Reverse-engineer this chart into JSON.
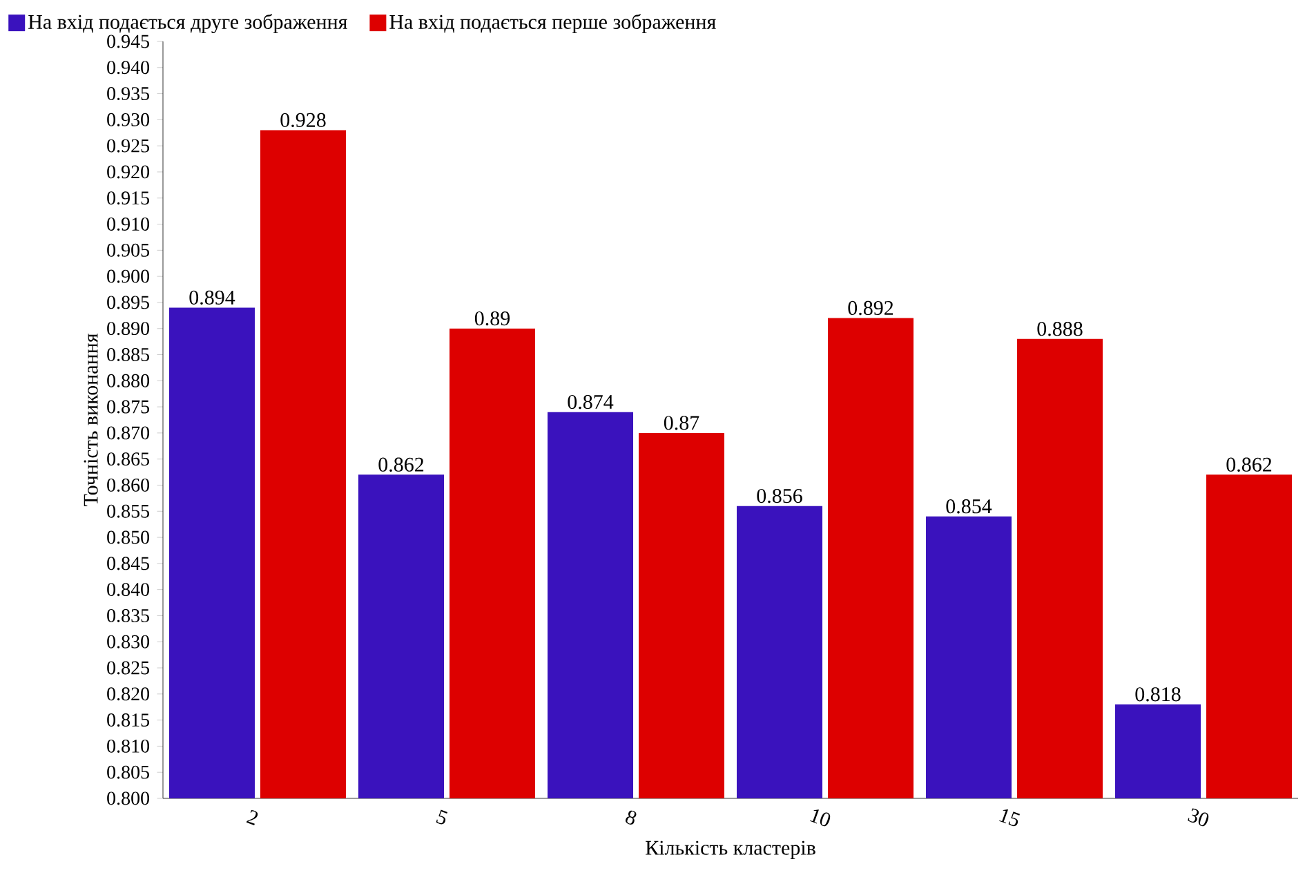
{
  "chart_data": {
    "type": "bar",
    "xlabel": "Кількість кластерів",
    "ylabel": "Точність виконання",
    "categories": [
      "2",
      "5",
      "8",
      "10",
      "15",
      "30"
    ],
    "series": [
      {
        "name": "На вхід подається друге зображення",
        "color": "#3a12bd",
        "values": [
          0.894,
          0.862,
          0.874,
          0.856,
          0.854,
          0.818
        ],
        "value_labels": [
          "0.894",
          "0.862",
          "0.874",
          "0.856",
          "0.854",
          "0.818"
        ]
      },
      {
        "name": "На вхід подається перше зображення",
        "color": "#dd0000",
        "values": [
          0.928,
          0.89,
          0.87,
          0.892,
          0.888,
          0.862
        ],
        "value_labels": [
          "0.928",
          "0.89",
          "0.87",
          "0.892",
          "0.888",
          "0.862"
        ]
      }
    ],
    "ylim": [
      0.8,
      0.945
    ],
    "yticks": [
      {
        "value": 0.8,
        "label": "0.800"
      },
      {
        "value": 0.805,
        "label": "0.805"
      },
      {
        "value": 0.81,
        "label": "0.810"
      },
      {
        "value": 0.815,
        "label": "0.815"
      },
      {
        "value": 0.82,
        "label": "0.820"
      },
      {
        "value": 0.825,
        "label": "0.825"
      },
      {
        "value": 0.83,
        "label": "0.830"
      },
      {
        "value": 0.835,
        "label": "0.835"
      },
      {
        "value": 0.84,
        "label": "0.840"
      },
      {
        "value": 0.845,
        "label": "0.845"
      },
      {
        "value": 0.85,
        "label": "0.850"
      },
      {
        "value": 0.855,
        "label": "0.855"
      },
      {
        "value": 0.86,
        "label": "0.860"
      },
      {
        "value": 0.865,
        "label": "0.865"
      },
      {
        "value": 0.87,
        "label": "0.870"
      },
      {
        "value": 0.875,
        "label": "0.875"
      },
      {
        "value": 0.88,
        "label": "0.880"
      },
      {
        "value": 0.885,
        "label": "0.885"
      },
      {
        "value": 0.89,
        "label": "0.890"
      },
      {
        "value": 0.895,
        "label": "0.895"
      },
      {
        "value": 0.9,
        "label": "0.900"
      },
      {
        "value": 0.905,
        "label": "0.905"
      },
      {
        "value": 0.91,
        "label": "0.910"
      },
      {
        "value": 0.915,
        "label": "0.915"
      },
      {
        "value": 0.92,
        "label": "0.920"
      },
      {
        "value": 0.925,
        "label": "0.925"
      },
      {
        "value": 0.93,
        "label": "0.930"
      },
      {
        "value": 0.935,
        "label": "0.935"
      },
      {
        "value": 0.94,
        "label": "0.940"
      },
      {
        "value": 0.945,
        "label": "0.945"
      }
    ],
    "legend": "top left",
    "grid": false
  }
}
